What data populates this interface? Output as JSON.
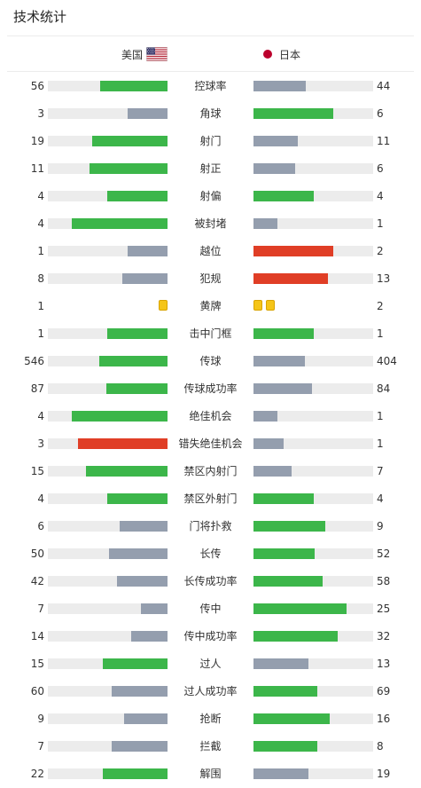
{
  "header": {
    "title": "技术统计"
  },
  "teams": {
    "home": {
      "name": "美国",
      "flag_icon": "us-flag-icon"
    },
    "away": {
      "name": "日本",
      "flag_icon": "japan-flag-icon",
      "flag_color": "#bc002d"
    }
  },
  "colors": {
    "leader": "#3cb64a",
    "trailer": "#949eae",
    "negative_leader": "#e03e26",
    "track": "#ececec",
    "yellow_card": "#f5c518"
  },
  "stats": [
    {
      "label": "控球率",
      "home": "56",
      "away": "44",
      "home_fill": 0.56,
      "away_fill": 0.44,
      "home_color": "leader",
      "away_color": "trailer"
    },
    {
      "label": "角球",
      "home": "3",
      "away": "6",
      "home_fill": 0.33,
      "away_fill": 0.67,
      "home_color": "trailer",
      "away_color": "leader"
    },
    {
      "label": "射门",
      "home": "19",
      "away": "11",
      "home_fill": 0.63,
      "away_fill": 0.37,
      "home_color": "leader",
      "away_color": "trailer"
    },
    {
      "label": "射正",
      "home": "11",
      "away": "6",
      "home_fill": 0.65,
      "away_fill": 0.35,
      "home_color": "leader",
      "away_color": "trailer"
    },
    {
      "label": "射偏",
      "home": "4",
      "away": "4",
      "home_fill": 0.5,
      "away_fill": 0.5,
      "home_color": "leader",
      "away_color": "leader"
    },
    {
      "label": "被封堵",
      "home": "4",
      "away": "1",
      "home_fill": 0.8,
      "away_fill": 0.2,
      "home_color": "leader",
      "away_color": "trailer"
    },
    {
      "label": "越位",
      "home": "1",
      "away": "2",
      "home_fill": 0.33,
      "away_fill": 0.67,
      "home_color": "trailer",
      "away_color": "negative_leader"
    },
    {
      "label": "犯规",
      "home": "8",
      "away": "13",
      "home_fill": 0.38,
      "away_fill": 0.62,
      "home_color": "trailer",
      "away_color": "negative_leader"
    },
    {
      "label": "黄牌",
      "home": "1",
      "away": "2",
      "type": "cards",
      "home_cards": 1,
      "away_cards": 2
    },
    {
      "label": "击中门框",
      "home": "1",
      "away": "1",
      "home_fill": 0.5,
      "away_fill": 0.5,
      "home_color": "leader",
      "away_color": "leader"
    },
    {
      "label": "传球",
      "home": "546",
      "away": "404",
      "home_fill": 0.57,
      "away_fill": 0.43,
      "home_color": "leader",
      "away_color": "trailer"
    },
    {
      "label": "传球成功率",
      "home": "87",
      "away": "84",
      "home_fill": 0.51,
      "away_fill": 0.49,
      "home_color": "leader",
      "away_color": "trailer"
    },
    {
      "label": "绝佳机会",
      "home": "4",
      "away": "1",
      "home_fill": 0.8,
      "away_fill": 0.2,
      "home_color": "leader",
      "away_color": "trailer"
    },
    {
      "label": "错失绝佳机会",
      "home": "3",
      "away": "1",
      "home_fill": 0.75,
      "away_fill": 0.25,
      "home_color": "negative_leader",
      "away_color": "trailer"
    },
    {
      "label": "禁区内射门",
      "home": "15",
      "away": "7",
      "home_fill": 0.68,
      "away_fill": 0.32,
      "home_color": "leader",
      "away_color": "trailer"
    },
    {
      "label": "禁区外射门",
      "home": "4",
      "away": "4",
      "home_fill": 0.5,
      "away_fill": 0.5,
      "home_color": "leader",
      "away_color": "leader"
    },
    {
      "label": "门将扑救",
      "home": "6",
      "away": "9",
      "home_fill": 0.4,
      "away_fill": 0.6,
      "home_color": "trailer",
      "away_color": "leader"
    },
    {
      "label": "长传",
      "home": "50",
      "away": "52",
      "home_fill": 0.49,
      "away_fill": 0.51,
      "home_color": "trailer",
      "away_color": "leader"
    },
    {
      "label": "长传成功率",
      "home": "42",
      "away": "58",
      "home_fill": 0.42,
      "away_fill": 0.58,
      "home_color": "trailer",
      "away_color": "leader"
    },
    {
      "label": "传中",
      "home": "7",
      "away": "25",
      "home_fill": 0.22,
      "away_fill": 0.78,
      "home_color": "trailer",
      "away_color": "leader"
    },
    {
      "label": "传中成功率",
      "home": "14",
      "away": "32",
      "home_fill": 0.3,
      "away_fill": 0.7,
      "home_color": "trailer",
      "away_color": "leader"
    },
    {
      "label": "过人",
      "home": "15",
      "away": "13",
      "home_fill": 0.54,
      "away_fill": 0.46,
      "home_color": "leader",
      "away_color": "trailer"
    },
    {
      "label": "过人成功率",
      "home": "60",
      "away": "69",
      "home_fill": 0.47,
      "away_fill": 0.53,
      "home_color": "trailer",
      "away_color": "leader"
    },
    {
      "label": "抢断",
      "home": "9",
      "away": "16",
      "home_fill": 0.36,
      "away_fill": 0.64,
      "home_color": "trailer",
      "away_color": "leader"
    },
    {
      "label": "拦截",
      "home": "7",
      "away": "8",
      "home_fill": 0.47,
      "away_fill": 0.53,
      "home_color": "trailer",
      "away_color": "leader"
    },
    {
      "label": "解围",
      "home": "22",
      "away": "19",
      "home_fill": 0.54,
      "away_fill": 0.46,
      "home_color": "leader",
      "away_color": "trailer"
    }
  ]
}
